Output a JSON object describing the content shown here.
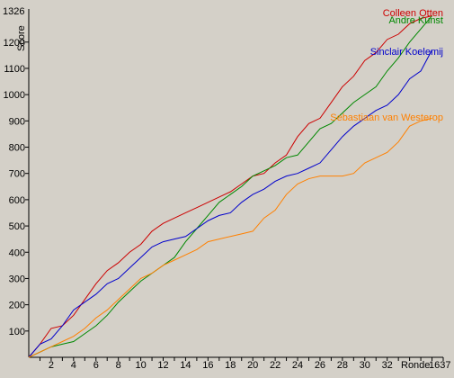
{
  "chart_data": {
    "type": "line",
    "ylabel": "Score",
    "xlabel": "Ronde",
    "x_max_label": "1637",
    "xlim": [
      0,
      37
    ],
    "ylim": [
      0,
      1326
    ],
    "y_max_label": "1326",
    "x_ticks": [
      2,
      4,
      6,
      8,
      10,
      12,
      14,
      16,
      18,
      20,
      22,
      24,
      26,
      28,
      30,
      32
    ],
    "y_ticks": [
      100,
      200,
      300,
      400,
      500,
      600,
      700,
      800,
      900,
      1000,
      1100,
      1200
    ],
    "grid": false,
    "legend": "inline labels near line ends (right)",
    "background": "#d4d0c8",
    "x": [
      0,
      1,
      2,
      3,
      4,
      5,
      6,
      7,
      8,
      9,
      10,
      11,
      12,
      13,
      14,
      15,
      16,
      17,
      18,
      19,
      20,
      21,
      22,
      23,
      24,
      25,
      26,
      27,
      28,
      29,
      30,
      31,
      32,
      33,
      34,
      35,
      36
    ],
    "series": [
      {
        "name": "Colleen Otten",
        "color": "#cc0000",
        "values": [
          0,
          50,
          110,
          120,
          160,
          220,
          280,
          330,
          360,
          400,
          430,
          480,
          510,
          530,
          550,
          570,
          590,
          610,
          630,
          660,
          690,
          700,
          740,
          770,
          840,
          890,
          910,
          970,
          1030,
          1070,
          1130,
          1160,
          1210,
          1230,
          1270,
          1290,
          1300
        ]
      },
      {
        "name": "Andre Kunst",
        "color": "#008800",
        "values": [
          0,
          20,
          40,
          50,
          60,
          90,
          120,
          160,
          210,
          250,
          290,
          320,
          350,
          380,
          440,
          490,
          540,
          590,
          620,
          650,
          690,
          710,
          730,
          760,
          770,
          820,
          870,
          890,
          930,
          970,
          1000,
          1030,
          1090,
          1140,
          1200,
          1250,
          1300
        ]
      },
      {
        "name": "Sinclair Koelemij",
        "color": "#0000cc",
        "values": [
          0,
          50,
          70,
          120,
          180,
          210,
          240,
          280,
          300,
          340,
          380,
          420,
          440,
          450,
          460,
          490,
          520,
          540,
          550,
          590,
          620,
          640,
          670,
          690,
          700,
          720,
          740,
          790,
          840,
          880,
          910,
          940,
          960,
          1000,
          1060,
          1090,
          1170
        ]
      },
      {
        "name": "Sebastiaan van Westerop",
        "color": "#ff8000",
        "values": [
          0,
          20,
          40,
          60,
          80,
          110,
          150,
          180,
          220,
          260,
          300,
          320,
          350,
          370,
          390,
          410,
          440,
          450,
          460,
          470,
          480,
          530,
          560,
          620,
          660,
          680,
          690,
          690,
          690,
          700,
          740,
          760,
          780,
          820,
          880,
          900,
          910
        ]
      }
    ]
  }
}
